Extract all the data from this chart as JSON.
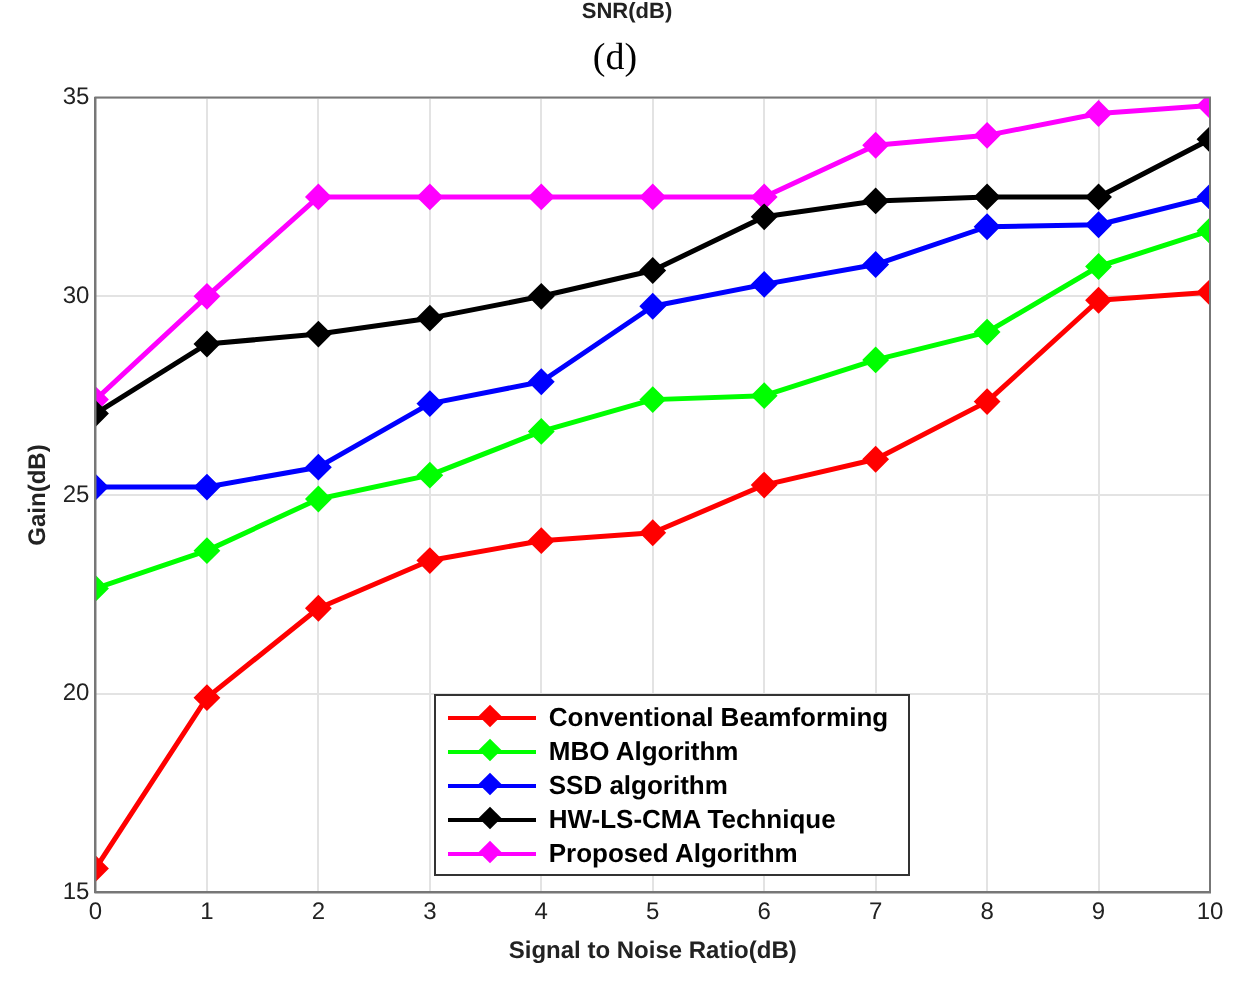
{
  "chart_data": {
    "type": "line",
    "title": "(d)",
    "annotations": [
      "SNR(dB)"
    ],
    "xlabel": "Signal to Noise Ratio(dB)",
    "ylabel": "Gain(dB)",
    "x": [
      0,
      1,
      2,
      3,
      4,
      5,
      6,
      7,
      8,
      9,
      10
    ],
    "series": [
      {
        "name": "Conventional Beamforming",
        "color": "#ff0000",
        "values": [
          15.6,
          19.9,
          22.15,
          23.35,
          23.85,
          24.05,
          25.25,
          25.9,
          27.35,
          29.9,
          30.1
        ]
      },
      {
        "name": "MBO Algorithm",
        "color": "#00ff00",
        "values": [
          22.65,
          23.6,
          24.9,
          25.5,
          26.6,
          27.4,
          27.5,
          28.4,
          29.1,
          30.75,
          31.65
        ]
      },
      {
        "name": "SSD algorithm",
        "color": "#0000ff",
        "values": [
          25.2,
          25.2,
          25.7,
          27.3,
          27.85,
          29.75,
          30.3,
          30.8,
          31.75,
          31.8,
          32.5
        ]
      },
      {
        "name": "HW-LS-CMA Technique",
        "color": "#000000",
        "values": [
          27.05,
          28.8,
          29.05,
          29.45,
          30.0,
          30.65,
          32.0,
          32.4,
          32.5,
          32.5,
          33.95
        ]
      },
      {
        "name": "Proposed Algorithm",
        "color": "#ff00ff",
        "values": [
          27.4,
          30.0,
          32.5,
          32.5,
          32.5,
          32.5,
          32.5,
          33.8,
          34.05,
          34.6,
          34.8
        ]
      }
    ],
    "xlim": [
      0,
      10
    ],
    "xticks": [
      0,
      1,
      2,
      3,
      4,
      5,
      6,
      7,
      8,
      9,
      10
    ],
    "ylim": [
      15,
      35
    ],
    "yticks": [
      15,
      20,
      25,
      30,
      35
    ],
    "grid": true,
    "legend": "bottom",
    "marker": "diamond",
    "line_style": "solid"
  }
}
